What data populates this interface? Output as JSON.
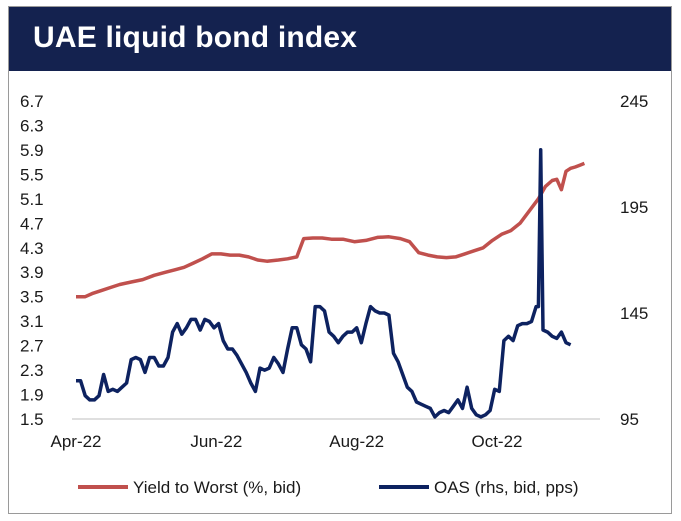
{
  "title": "UAE liquid bond index",
  "colors": {
    "header_bg": "#14224f",
    "ytw": "#c0504d",
    "oas": "#0d2260"
  },
  "chart_data": {
    "type": "line",
    "title": "UAE liquid bond index",
    "xlabel": "",
    "ylabel": "",
    "x_ticks": [
      "Apr-22",
      "Jun-22",
      "Aug-22",
      "Oct-22"
    ],
    "x_range": [
      "2022-04-01",
      "2022-10-31"
    ],
    "y_left": {
      "ticks": [
        "6.7",
        "6.3",
        "5.9",
        "5.5",
        "5.1",
        "4.7",
        "4.3",
        "3.9",
        "3.5",
        "3.1",
        "2.7",
        "2.3",
        "1.9",
        "1.5"
      ],
      "range": [
        1.5,
        6.7
      ]
    },
    "y_right": {
      "ticks": [
        "245",
        "195",
        "145",
        "95"
      ],
      "range": [
        95,
        245
      ]
    },
    "grid": false,
    "legend_position": "bottom",
    "series": [
      {
        "name": "Yield to Worst (%, bid)",
        "axis": "left",
        "points": [
          [
            "2022-04-01",
            3.5
          ],
          [
            "2022-04-05",
            3.5
          ],
          [
            "2022-04-08",
            3.55
          ],
          [
            "2022-04-12",
            3.6
          ],
          [
            "2022-04-16",
            3.65
          ],
          [
            "2022-04-20",
            3.7
          ],
          [
            "2022-04-25",
            3.74
          ],
          [
            "2022-04-30",
            3.78
          ],
          [
            "2022-05-05",
            3.85
          ],
          [
            "2022-05-10",
            3.9
          ],
          [
            "2022-05-14",
            3.94
          ],
          [
            "2022-05-18",
            3.98
          ],
          [
            "2022-05-22",
            4.05
          ],
          [
            "2022-05-26",
            4.12
          ],
          [
            "2022-05-30",
            4.2
          ],
          [
            "2022-06-03",
            4.2
          ],
          [
            "2022-06-07",
            4.18
          ],
          [
            "2022-06-11",
            4.18
          ],
          [
            "2022-06-15",
            4.15
          ],
          [
            "2022-06-19",
            4.1
          ],
          [
            "2022-06-23",
            4.08
          ],
          [
            "2022-06-28",
            4.1
          ],
          [
            "2022-07-02",
            4.12
          ],
          [
            "2022-07-06",
            4.15
          ],
          [
            "2022-07-09",
            4.45
          ],
          [
            "2022-07-13",
            4.46
          ],
          [
            "2022-07-17",
            4.46
          ],
          [
            "2022-07-21",
            4.44
          ],
          [
            "2022-07-26",
            4.44
          ],
          [
            "2022-07-31",
            4.4
          ],
          [
            "2022-08-05",
            4.42
          ],
          [
            "2022-08-10",
            4.47
          ],
          [
            "2022-08-15",
            4.48
          ],
          [
            "2022-08-20",
            4.45
          ],
          [
            "2022-08-24",
            4.4
          ],
          [
            "2022-08-28",
            4.22
          ],
          [
            "2022-09-01",
            4.18
          ],
          [
            "2022-09-05",
            4.15
          ],
          [
            "2022-09-09",
            4.14
          ],
          [
            "2022-09-13",
            4.15
          ],
          [
            "2022-09-17",
            4.2
          ],
          [
            "2022-09-21",
            4.25
          ],
          [
            "2022-09-25",
            4.3
          ],
          [
            "2022-09-29",
            4.42
          ],
          [
            "2022-10-03",
            4.52
          ],
          [
            "2022-10-07",
            4.58
          ],
          [
            "2022-10-11",
            4.7
          ],
          [
            "2022-10-15",
            4.9
          ],
          [
            "2022-10-19",
            5.1
          ],
          [
            "2022-10-22",
            5.3
          ],
          [
            "2022-10-25",
            5.4
          ],
          [
            "2022-10-27",
            5.42
          ],
          [
            "2022-10-29",
            5.25
          ],
          [
            "2022-10-31",
            5.55
          ],
          [
            "2022-11-02",
            5.6
          ],
          [
            "2022-11-04",
            5.62
          ],
          [
            "2022-11-06",
            5.65
          ],
          [
            "2022-11-08",
            5.68
          ]
        ]
      },
      {
        "name": "OAS (rhs, bid, pps)",
        "axis": "right",
        "points": [
          [
            "2022-04-01",
            113
          ],
          [
            "2022-04-03",
            113
          ],
          [
            "2022-04-05",
            106
          ],
          [
            "2022-04-07",
            104
          ],
          [
            "2022-04-09",
            104
          ],
          [
            "2022-04-11",
            106
          ],
          [
            "2022-04-13",
            116
          ],
          [
            "2022-04-15",
            108
          ],
          [
            "2022-04-17",
            109
          ],
          [
            "2022-04-19",
            108
          ],
          [
            "2022-04-21",
            110
          ],
          [
            "2022-04-23",
            112
          ],
          [
            "2022-04-25",
            123
          ],
          [
            "2022-04-27",
            124
          ],
          [
            "2022-04-29",
            123
          ],
          [
            "2022-05-01",
            117
          ],
          [
            "2022-05-03",
            124
          ],
          [
            "2022-05-05",
            124
          ],
          [
            "2022-05-07",
            120
          ],
          [
            "2022-05-09",
            120
          ],
          [
            "2022-05-11",
            124
          ],
          [
            "2022-05-13",
            136
          ],
          [
            "2022-05-15",
            140
          ],
          [
            "2022-05-17",
            135
          ],
          [
            "2022-05-19",
            138
          ],
          [
            "2022-05-21",
            142
          ],
          [
            "2022-05-23",
            142
          ],
          [
            "2022-05-25",
            137
          ],
          [
            "2022-05-27",
            142
          ],
          [
            "2022-05-29",
            141
          ],
          [
            "2022-05-31",
            138
          ],
          [
            "2022-06-02",
            140
          ],
          [
            "2022-06-04",
            132
          ],
          [
            "2022-06-06",
            128
          ],
          [
            "2022-06-08",
            128
          ],
          [
            "2022-06-10",
            125
          ],
          [
            "2022-06-12",
            121
          ],
          [
            "2022-06-14",
            117
          ],
          [
            "2022-06-16",
            112
          ],
          [
            "2022-06-18",
            108
          ],
          [
            "2022-06-20",
            119
          ],
          [
            "2022-06-22",
            118
          ],
          [
            "2022-06-24",
            119
          ],
          [
            "2022-06-26",
            124
          ],
          [
            "2022-06-28",
            121
          ],
          [
            "2022-06-30",
            117
          ],
          [
            "2022-07-02",
            128
          ],
          [
            "2022-07-04",
            138
          ],
          [
            "2022-07-06",
            138
          ],
          [
            "2022-07-08",
            130
          ],
          [
            "2022-07-10",
            128
          ],
          [
            "2022-07-12",
            122
          ],
          [
            "2022-07-14",
            148
          ],
          [
            "2022-07-16",
            148
          ],
          [
            "2022-07-18",
            146
          ],
          [
            "2022-07-20",
            136
          ],
          [
            "2022-07-22",
            134
          ],
          [
            "2022-07-24",
            131
          ],
          [
            "2022-07-26",
            134
          ],
          [
            "2022-07-28",
            136
          ],
          [
            "2022-07-30",
            136
          ],
          [
            "2022-08-01",
            138
          ],
          [
            "2022-08-03",
            131
          ],
          [
            "2022-08-05",
            140
          ],
          [
            "2022-08-07",
            148
          ],
          [
            "2022-08-09",
            146
          ],
          [
            "2022-08-11",
            145
          ],
          [
            "2022-08-13",
            145
          ],
          [
            "2022-08-15",
            144
          ],
          [
            "2022-08-17",
            126
          ],
          [
            "2022-08-19",
            122
          ],
          [
            "2022-08-21",
            116
          ],
          [
            "2022-08-23",
            110
          ],
          [
            "2022-08-25",
            108
          ],
          [
            "2022-08-27",
            103
          ],
          [
            "2022-08-29",
            102
          ],
          [
            "2022-08-31",
            101
          ],
          [
            "2022-09-02",
            100
          ],
          [
            "2022-09-04",
            96
          ],
          [
            "2022-09-06",
            98
          ],
          [
            "2022-09-08",
            99
          ],
          [
            "2022-09-10",
            98
          ],
          [
            "2022-09-12",
            101
          ],
          [
            "2022-09-14",
            104
          ],
          [
            "2022-09-16",
            100
          ],
          [
            "2022-09-18",
            110
          ],
          [
            "2022-09-20",
            100
          ],
          [
            "2022-09-22",
            97
          ],
          [
            "2022-09-24",
            96
          ],
          [
            "2022-09-26",
            97
          ],
          [
            "2022-09-28",
            99
          ],
          [
            "2022-09-30",
            109
          ],
          [
            "2022-10-02",
            108
          ],
          [
            "2022-10-04",
            132
          ],
          [
            "2022-10-06",
            134
          ],
          [
            "2022-10-08",
            132
          ],
          [
            "2022-10-10",
            139
          ],
          [
            "2022-10-12",
            140
          ],
          [
            "2022-10-14",
            140
          ],
          [
            "2022-10-16",
            141
          ],
          [
            "2022-10-18",
            148
          ],
          [
            "2022-10-19",
            148
          ],
          [
            "2022-10-20",
            222
          ],
          [
            "2022-10-21",
            137
          ],
          [
            "2022-10-23",
            136
          ],
          [
            "2022-10-25",
            134
          ],
          [
            "2022-10-27",
            133
          ],
          [
            "2022-10-29",
            136
          ],
          [
            "2022-10-31",
            131
          ],
          [
            "2022-11-02",
            130
          ]
        ]
      }
    ]
  }
}
